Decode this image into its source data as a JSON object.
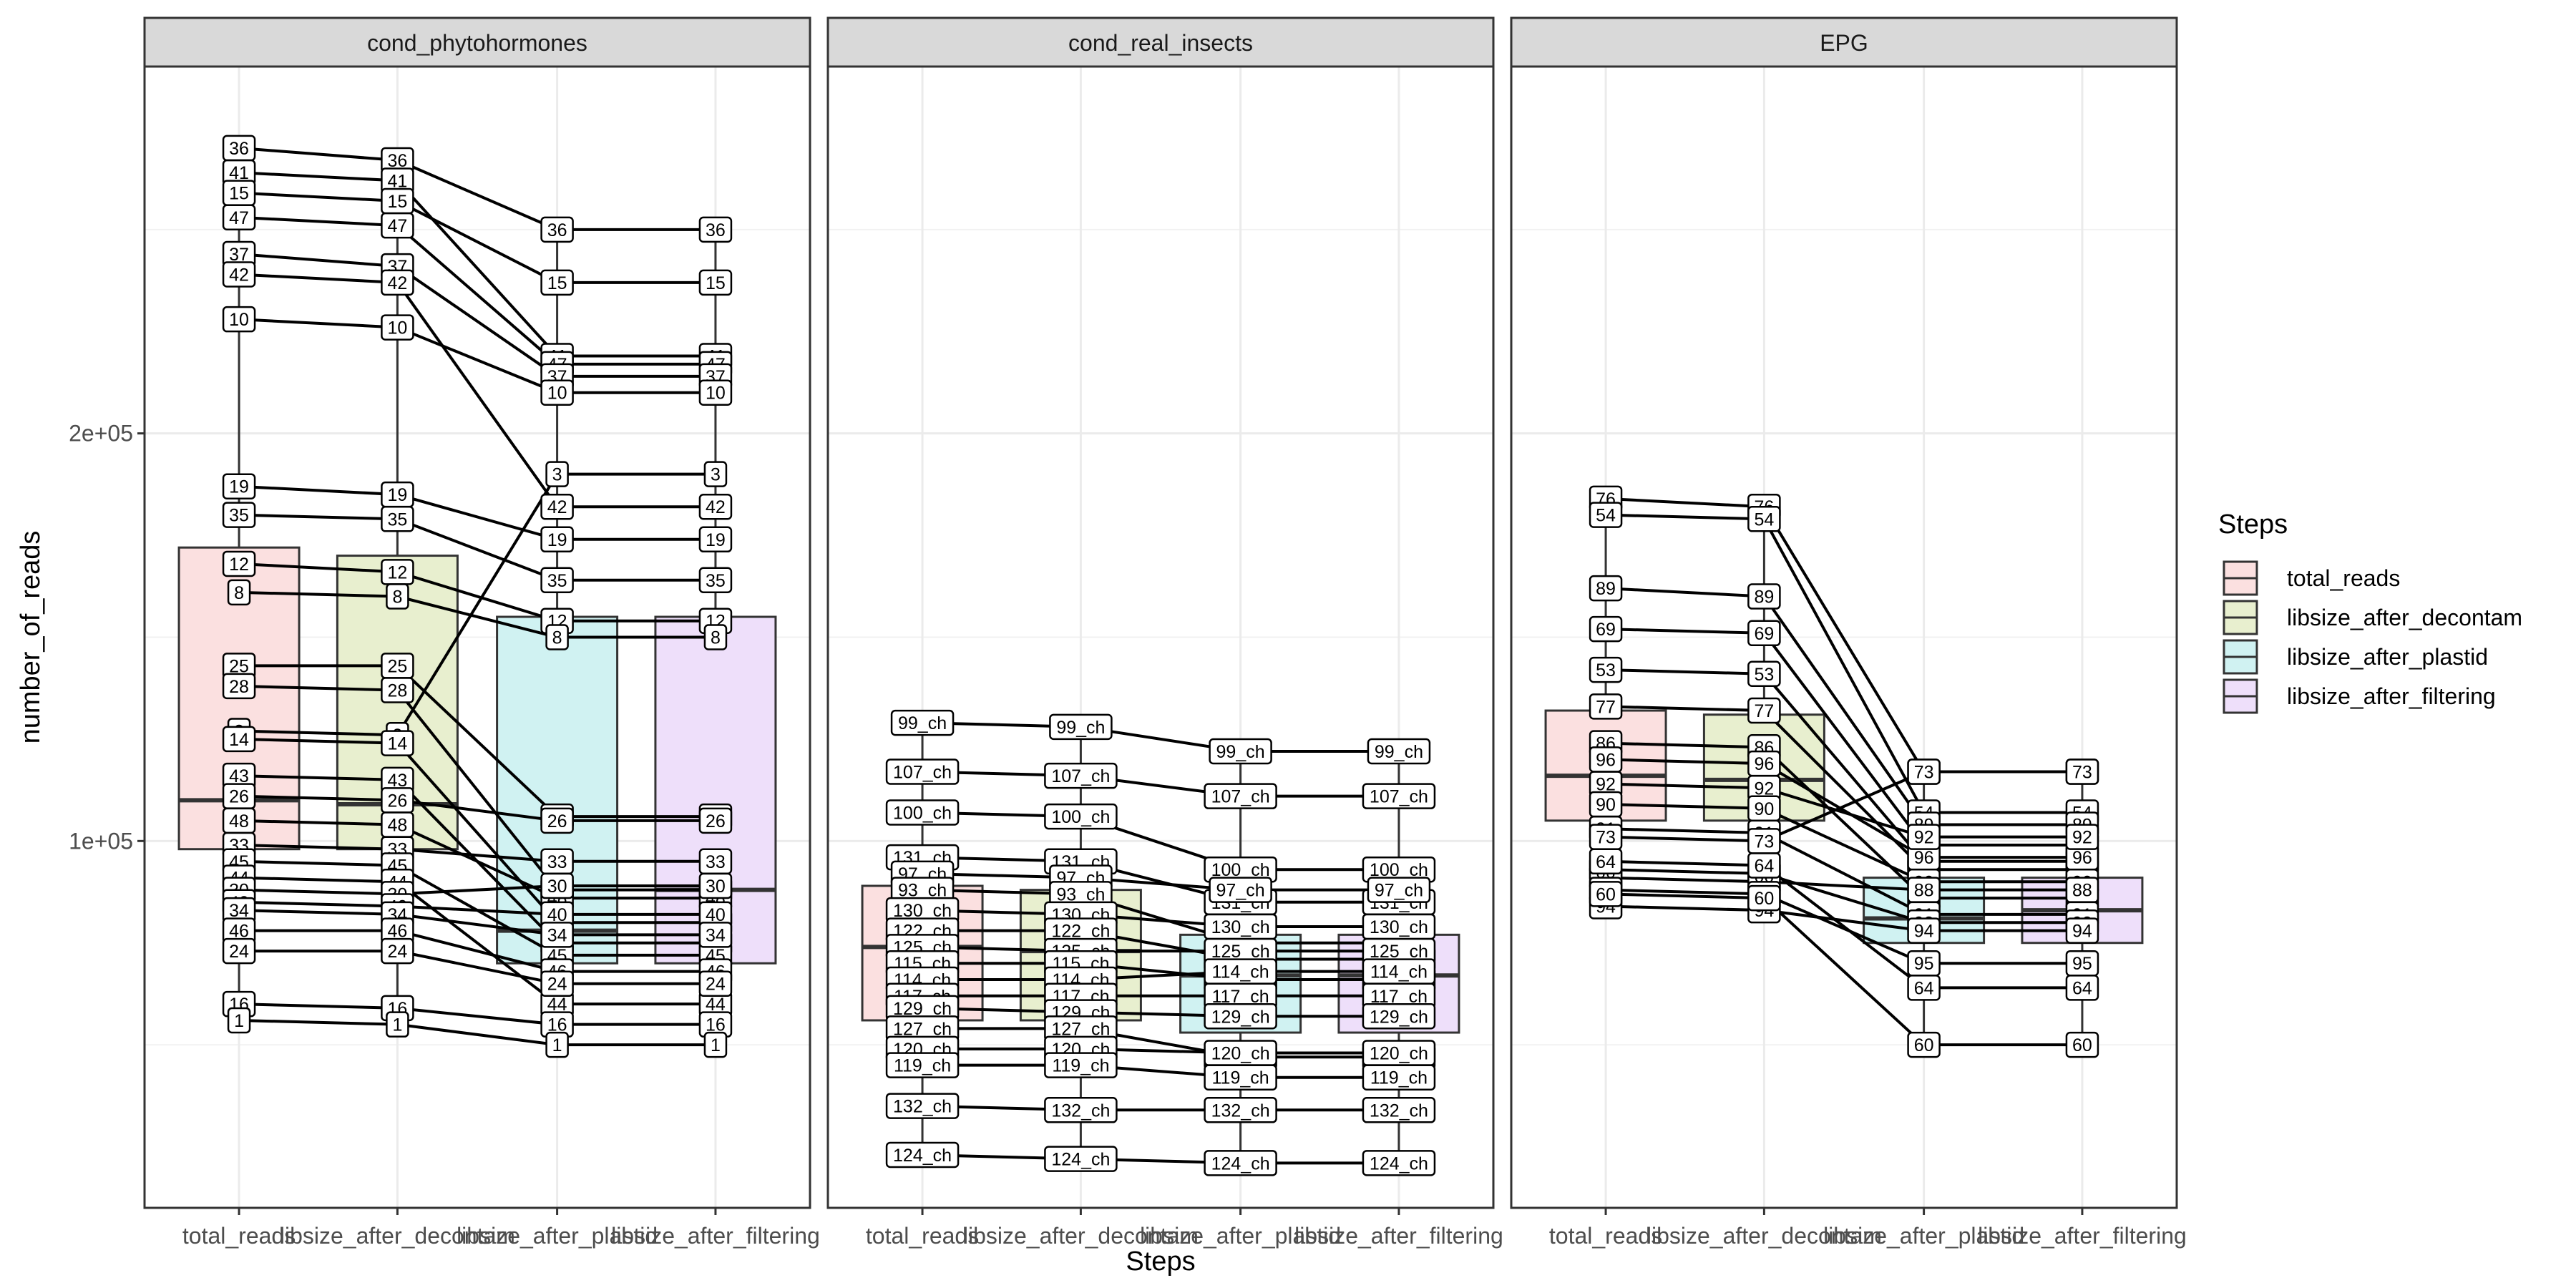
{
  "chart_data": {
    "type": "boxplot",
    "xlabel": "Steps",
    "ylabel": "number_of_reads",
    "y_ticks": [
      {
        "value": 100000,
        "label": "1e+05"
      },
      {
        "value": 200000,
        "label": "2e+05"
      }
    ],
    "ylim": [
      10000,
      290000
    ],
    "grid": true,
    "categories": [
      "total_reads",
      "libsize_after_decontam",
      "libsize_after_plastid",
      "libsize_after_filtering"
    ],
    "legend": {
      "title": "Steps",
      "position": "right",
      "entries": [
        {
          "label": "total_reads",
          "fill": "#fbe0e0",
          "stroke": "#333333"
        },
        {
          "label": "libsize_after_decontam",
          "fill": "#e8efcf",
          "stroke": "#333333"
        },
        {
          "label": "libsize_after_plastid",
          "fill": "#d0f2f2",
          "stroke": "#333333"
        },
        {
          "label": "libsize_after_filtering",
          "fill": "#eedffa",
          "stroke": "#333333"
        }
      ]
    },
    "panels": [
      {
        "title": "cond_phytohormones",
        "boxes": [
          {
            "q1": 98000,
            "median": 110000,
            "q3": 172000,
            "lower": 55000,
            "upper": 271000
          },
          {
            "q1": 98000,
            "median": 109000,
            "q3": 170000,
            "lower": 55000,
            "upper": 268000
          },
          {
            "q1": 70000,
            "median": 78000,
            "q3": 155000,
            "lower": 50000,
            "upper": 250000
          },
          {
            "q1": 70000,
            "median": 88000,
            "q3": 155000,
            "lower": 50000,
            "upper": 250000
          }
        ],
        "samples": [
          {
            "label": "36",
            "values": [
              270000,
              267000,
              250000,
              250000
            ]
          },
          {
            "label": "41",
            "values": [
              264000,
              262000,
              219000,
              219000
            ]
          },
          {
            "label": "15",
            "values": [
              259000,
              257000,
              237000,
              237000
            ]
          },
          {
            "label": "47",
            "values": [
              253000,
              251000,
              217000,
              217000
            ]
          },
          {
            "label": "37",
            "values": [
              244000,
              241000,
              214000,
              214000
            ]
          },
          {
            "label": "42",
            "values": [
              239000,
              237000,
              182000,
              182000
            ]
          },
          {
            "label": "10",
            "values": [
              228000,
              226000,
              210000,
              210000
            ]
          },
          {
            "label": "19",
            "values": [
              187000,
              185000,
              174000,
              174000
            ]
          },
          {
            "label": "35",
            "values": [
              180000,
              179000,
              164000,
              164000
            ]
          },
          {
            "label": "12",
            "values": [
              168000,
              166000,
              154000,
              154000
            ]
          },
          {
            "label": "8",
            "values": [
              161000,
              160000,
              150000,
              150000
            ]
          },
          {
            "label": "3",
            "values": [
              127000,
              126000,
              190000,
              190000
            ]
          },
          {
            "label": "25",
            "values": [
              143000,
              143000,
              106000,
              106000
            ]
          },
          {
            "label": "28",
            "values": [
              138000,
              137000,
              88000,
              88000
            ]
          },
          {
            "label": "14",
            "values": [
              125000,
              124000,
              80000,
              80000
            ]
          },
          {
            "label": "43",
            "values": [
              116000,
              115000,
              75000,
              75000
            ]
          },
          {
            "label": "26",
            "values": [
              111000,
              110000,
              105000,
              105000
            ]
          },
          {
            "label": "48",
            "values": [
              105000,
              104000,
              86000,
              86000
            ]
          },
          {
            "label": "33",
            "values": [
              99000,
              98000,
              95000,
              95000
            ]
          },
          {
            "label": "45",
            "values": [
              95000,
              94000,
              72000,
              72000
            ]
          },
          {
            "label": "44",
            "values": [
              91000,
              90000,
              60000,
              60000
            ]
          },
          {
            "label": "30",
            "values": [
              88000,
              87000,
              89000,
              89000
            ]
          },
          {
            "label": "40",
            "values": [
              85000,
              84000,
              82000,
              82000
            ]
          },
          {
            "label": "34",
            "values": [
              83000,
              82000,
              77000,
              77000
            ]
          },
          {
            "label": "46",
            "values": [
              78000,
              78000,
              68000,
              68000
            ]
          },
          {
            "label": "24",
            "values": [
              73000,
              73000,
              65000,
              65000
            ]
          },
          {
            "label": "16",
            "values": [
              60000,
              59000,
              55000,
              55000
            ]
          },
          {
            "label": "1",
            "values": [
              56000,
              55000,
              50000,
              50000
            ]
          }
        ]
      },
      {
        "title": "cond_real_insects",
        "boxes": [
          {
            "q1": 56000,
            "median": 74000,
            "q3": 89000,
            "lower": 22000,
            "upper": 129000
          },
          {
            "q1": 56000,
            "median": 73000,
            "q3": 88000,
            "lower": 22000,
            "upper": 128000
          },
          {
            "q1": 53000,
            "median": 67000,
            "q3": 77000,
            "lower": 21000,
            "upper": 122000
          },
          {
            "q1": 53000,
            "median": 67000,
            "q3": 77000,
            "lower": 21000,
            "upper": 122000
          }
        ],
        "samples": [
          {
            "label": "99_ch",
            "values": [
              129000,
              128000,
              122000,
              122000
            ]
          },
          {
            "label": "107_ch",
            "values": [
              117000,
              116000,
              111000,
              111000
            ]
          },
          {
            "label": "100_ch",
            "values": [
              107000,
              106000,
              93000,
              93000
            ]
          },
          {
            "label": "131_ch",
            "values": [
              96000,
              95000,
              85000,
              85000
            ]
          },
          {
            "label": "97_ch",
            "values": [
              92000,
              91000,
              88000,
              88000
            ]
          },
          {
            "label": "93_ch",
            "values": [
              88000,
              87000,
              75000,
              75000
            ]
          },
          {
            "label": "130_ch",
            "values": [
              83000,
              82000,
              79000,
              79000
            ]
          },
          {
            "label": "122_ch",
            "values": [
              78000,
              78000,
              71000,
              71000
            ]
          },
          {
            "label": "125_ch",
            "values": [
              74000,
              73000,
              73000,
              73000
            ]
          },
          {
            "label": "115_ch",
            "values": [
              70000,
              70000,
              66000,
              66000
            ]
          },
          {
            "label": "114_ch",
            "values": [
              66000,
              66000,
              68000,
              68000
            ]
          },
          {
            "label": "117_ch",
            "values": [
              62000,
              62000,
              62000,
              62000
            ]
          },
          {
            "label": "129_ch",
            "values": [
              59000,
              58000,
              57000,
              57000
            ]
          },
          {
            "label": "127_ch",
            "values": [
              54000,
              54000,
              47000,
              47000
            ]
          },
          {
            "label": "120_ch",
            "values": [
              49000,
              49000,
              48000,
              48000
            ]
          },
          {
            "label": "119_ch",
            "values": [
              45000,
              45000,
              42000,
              42000
            ]
          },
          {
            "label": "132_ch",
            "values": [
              35000,
              34000,
              34000,
              34000
            ]
          },
          {
            "label": "124_ch",
            "values": [
              23000,
              22000,
              21000,
              21000
            ]
          }
        ]
      },
      {
        "title": "EPG",
        "boxes": [
          {
            "q1": 105000,
            "median": 116000,
            "q3": 132000,
            "lower": 82000,
            "upper": 183000
          },
          {
            "q1": 105000,
            "median": 115000,
            "q3": 131000,
            "lower": 82000,
            "upper": 182000
          },
          {
            "q1": 75000,
            "median": 81000,
            "q3": 91000,
            "lower": 50000,
            "upper": 117000
          },
          {
            "q1": 75000,
            "median": 83000,
            "q3": 91000,
            "lower": 50000,
            "upper": 117000
          }
        ],
        "samples": [
          {
            "label": "76",
            "values": [
              184000,
              182000,
              117000,
              117000
            ]
          },
          {
            "label": "54",
            "values": [
              180000,
              179000,
              107000,
              107000
            ]
          },
          {
            "label": "89",
            "values": [
              162000,
              160000,
              104000,
              104000
            ]
          },
          {
            "label": "69",
            "values": [
              152000,
              151000,
              99000,
              99000
            ]
          },
          {
            "label": "53",
            "values": [
              142000,
              141000,
              95000,
              95000
            ]
          },
          {
            "label": "77",
            "values": [
              133000,
              132000,
              93000,
              93000
            ]
          },
          {
            "label": "86",
            "values": [
              124000,
              123000,
              86000,
              86000
            ]
          },
          {
            "label": "96",
            "values": [
              120000,
              119000,
              96000,
              96000
            ]
          },
          {
            "label": "92",
            "values": [
              114000,
              113000,
              101000,
              101000
            ]
          },
          {
            "label": "90",
            "values": [
              109000,
              108000,
              90000,
              90000
            ]
          },
          {
            "label": "91",
            "values": [
              103000,
              102000,
              82000,
              82000
            ]
          },
          {
            "label": "93",
            "values": [
              93000,
              92000,
              80000,
              80000
            ]
          },
          {
            "label": "88",
            "values": [
              91000,
              90000,
              88000,
              88000
            ]
          },
          {
            "label": "95",
            "values": [
              88000,
              87000,
              70000,
              70000
            ]
          },
          {
            "label": "94",
            "values": [
              84000,
              83000,
              78000,
              78000
            ]
          },
          {
            "label": "64",
            "values": [
              95000,
              94000,
              64000,
              64000
            ]
          },
          {
            "label": "73",
            "values": [
              101000,
              100000,
              117000,
              117000
            ]
          },
          {
            "label": "60",
            "values": [
              87000,
              86000,
              50000,
              50000
            ]
          }
        ]
      }
    ]
  }
}
